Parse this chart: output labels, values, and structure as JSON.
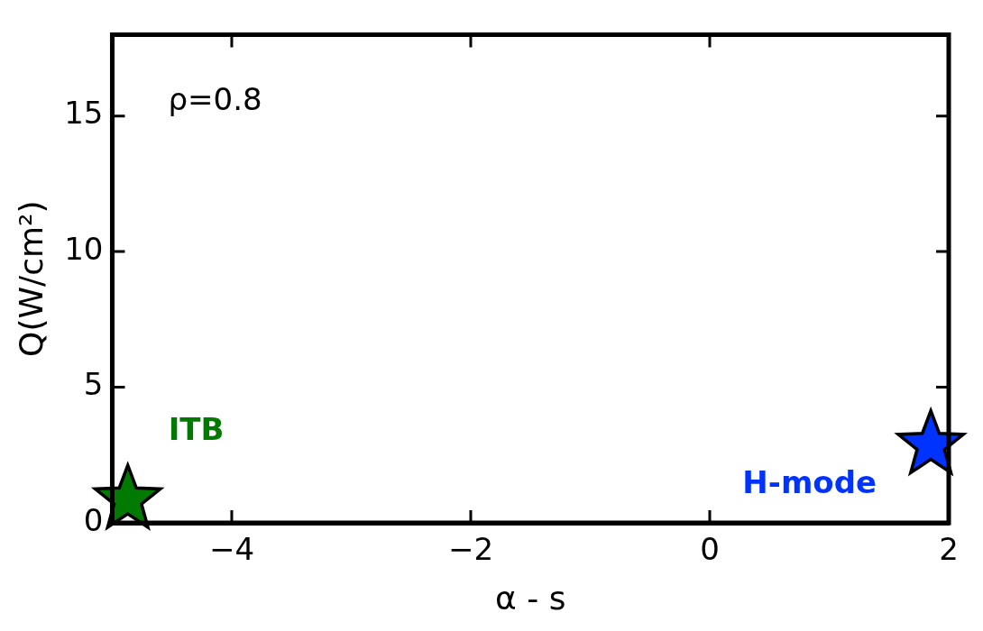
{
  "chart_data": {
    "type": "scatter",
    "xlabel": "α - s",
    "ylabel": "Q(W/cm²)",
    "xlim": [
      -5,
      2
    ],
    "xticks": [
      -4,
      -2,
      0,
      2
    ],
    "ylim": [
      0,
      18
    ],
    "yticks": [
      0,
      5,
      10,
      15
    ],
    "grid": false,
    "legend": false,
    "marker": "star",
    "annotations": [
      "ρ=0.8"
    ],
    "series": [
      {
        "name": "ITB",
        "color": "#007a00",
        "x": [
          -4.87
        ],
        "values": [
          0.86
        ]
      },
      {
        "name": "H-mode",
        "color": "#0033ff",
        "x": [
          1.85
        ],
        "values": [
          2.87
        ]
      }
    ]
  }
}
